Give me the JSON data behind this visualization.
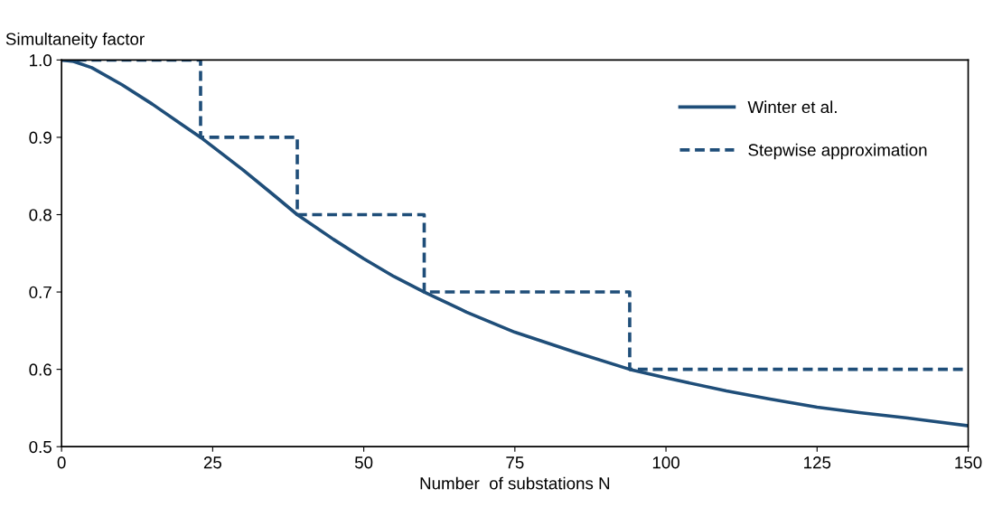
{
  "chart_data": {
    "type": "line",
    "xlabel": "Number  of substations N",
    "ylabel": "Simultaneity factor",
    "xlim": [
      0,
      150
    ],
    "xticks": [
      0,
      25,
      50,
      75,
      100,
      125,
      150
    ],
    "ylim": [
      0.5,
      1.0
    ],
    "yticks": [
      {
        "value": 0.5,
        "label": "0.5"
      },
      {
        "value": 0.6,
        "label": "0.6"
      },
      {
        "value": 0.7,
        "label": "0.7"
      },
      {
        "value": 0.8,
        "label": "0.8"
      },
      {
        "value": 0.9,
        "label": "0.9"
      },
      {
        "value": 1.0,
        "label": "1.0"
      }
    ],
    "grid": false,
    "legend": "top right",
    "marker": "none",
    "series": [
      {
        "name": "Winter et al.",
        "color": "#1f4e79",
        "line_style": "solid",
        "x": [
          0,
          2,
          5,
          10,
          15,
          20,
          23,
          30,
          35,
          39,
          45,
          50,
          55,
          60,
          67,
          75,
          85,
          94,
          100,
          110,
          117,
          125,
          132,
          140,
          150
        ],
        "values": [
          1.0,
          0.998,
          0.99,
          0.968,
          0.943,
          0.916,
          0.9,
          0.858,
          0.826,
          0.8,
          0.768,
          0.743,
          0.72,
          0.7,
          0.674,
          0.648,
          0.622,
          0.6,
          0.589,
          0.572,
          0.562,
          0.551,
          0.544,
          0.537,
          0.527
        ]
      },
      {
        "name": "Stepwise approximation",
        "color": "#1f4e79",
        "type": "step",
        "line_style": "dashed",
        "x": [
          0,
          23,
          39,
          60,
          94,
          150
        ],
        "values": [
          1.0,
          0.9,
          0.8,
          0.7,
          0.6,
          0.6
        ]
      }
    ]
  }
}
